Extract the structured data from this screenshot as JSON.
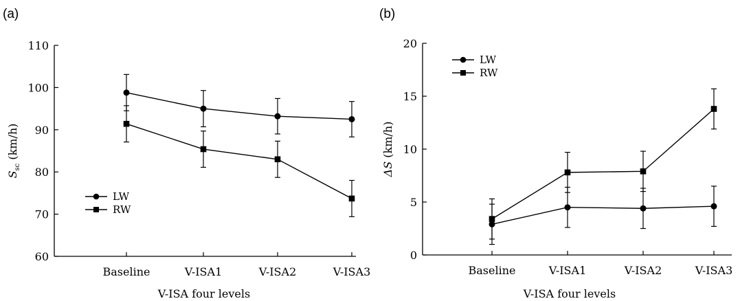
{
  "chart_data": [
    {
      "panel_label": "(a)",
      "type": "line",
      "categories": [
        "Baseline",
        "V-ISA1",
        "V-ISA2",
        "V-ISA3"
      ],
      "xlabel": "V-ISA four levels",
      "ylabel_main": "S",
      "ylabel_sub": "sc",
      "ylabel_unit": "(km/h)",
      "ylim": [
        60,
        110
      ],
      "yticks": [
        60,
        70,
        80,
        90,
        100,
        110
      ],
      "legend_position": "lower-left",
      "grid": false,
      "series": [
        {
          "name": "LW",
          "marker": "circle",
          "values": [
            98.8,
            95.0,
            93.2,
            92.5
          ],
          "errors": [
            4.3,
            4.3,
            4.2,
            4.2
          ]
        },
        {
          "name": "RW",
          "marker": "square",
          "values": [
            91.4,
            85.4,
            83.0,
            73.7
          ],
          "errors": [
            4.3,
            4.3,
            4.3,
            4.3
          ]
        }
      ]
    },
    {
      "panel_label": "(b)",
      "type": "line",
      "categories": [
        "Baseline",
        "V-ISA1",
        "V-ISA2",
        "V-ISA3"
      ],
      "xlabel": "V-ISA four levels",
      "ylabel_main": "ΔS",
      "ylabel_sub": "",
      "ylabel_unit": "(km/h)",
      "ylim": [
        0,
        20
      ],
      "yticks": [
        0,
        5,
        10,
        15,
        20
      ],
      "legend_position": "upper-left",
      "grid": false,
      "series": [
        {
          "name": "LW",
          "marker": "circle",
          "values": [
            2.9,
            4.5,
            4.4,
            4.6
          ],
          "errors": [
            1.9,
            1.9,
            1.9,
            1.9
          ]
        },
        {
          "name": "RW",
          "marker": "square",
          "values": [
            3.4,
            7.8,
            7.9,
            13.8
          ],
          "errors": [
            1.9,
            1.9,
            1.9,
            1.9
          ]
        }
      ]
    }
  ]
}
